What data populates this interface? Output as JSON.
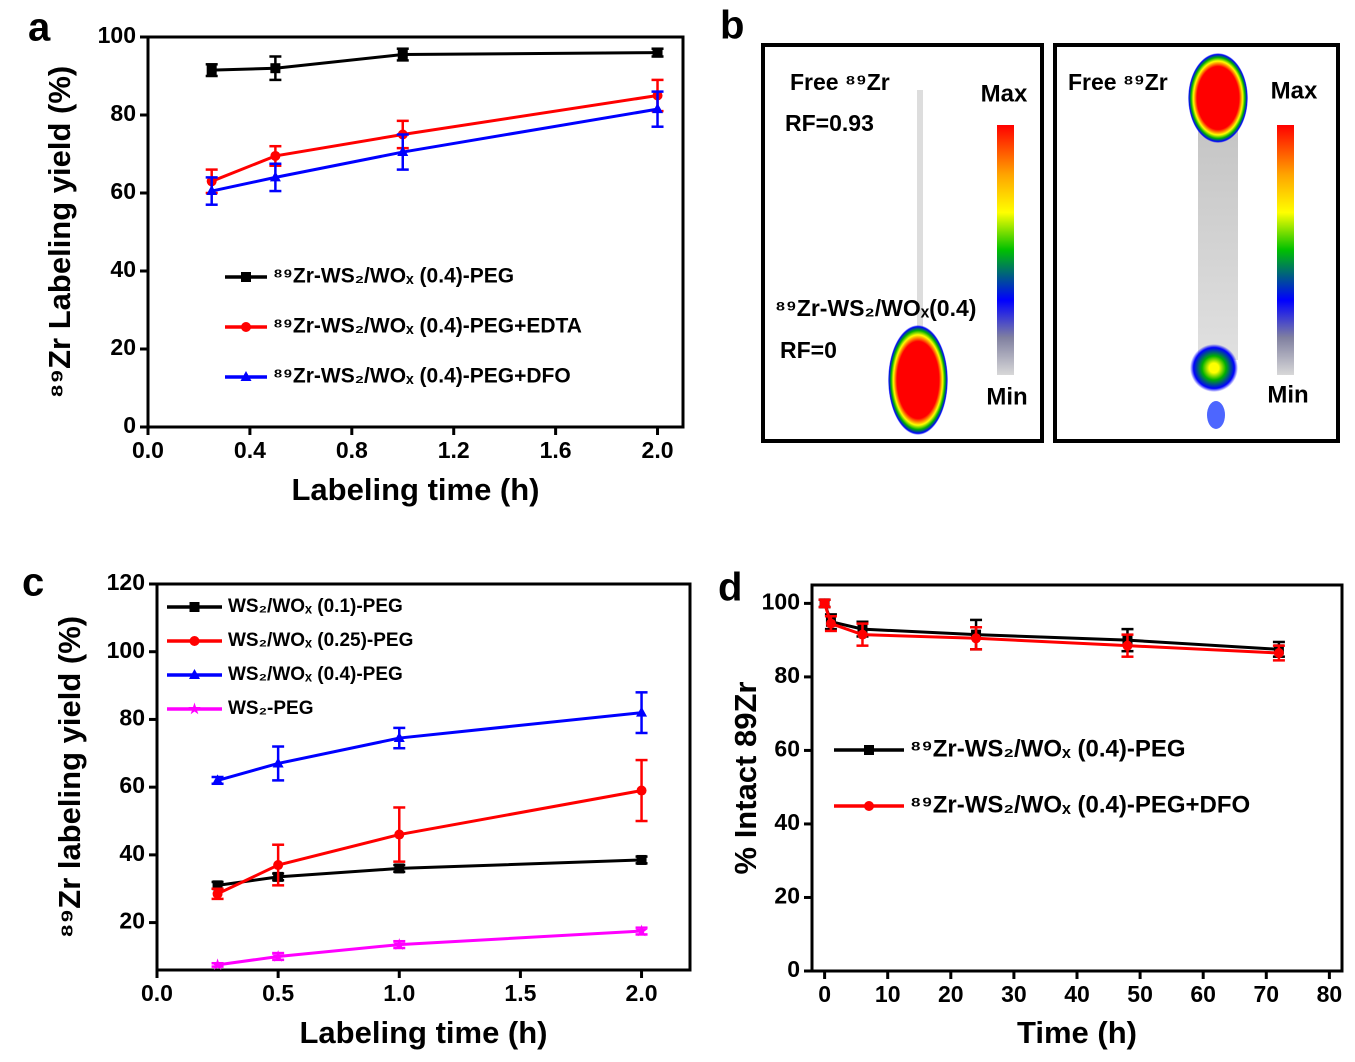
{
  "chart_data": [
    {
      "type": "line",
      "panel_label": "a",
      "xlabel": "Labeling time (h)",
      "ylabel": "⁸⁹Zr Labeling yield (%)",
      "x": [
        0.25,
        0.5,
        1,
        2
      ],
      "series": [
        {
          "name": "⁸⁹Zr-WS₂/WOₓ (0.4)-PEG",
          "color": "#000000",
          "marker": "square",
          "values": [
            91.5,
            92,
            95.5,
            96
          ],
          "errors": [
            1.5,
            3,
            1.5,
            1
          ]
        },
        {
          "name": "⁸⁹Zr-WS₂/WOₓ (0.4)-PEG+EDTA",
          "color": "#ff0000",
          "marker": "circle",
          "values": [
            63,
            69.5,
            75,
            85
          ],
          "errors": [
            3,
            2.5,
            3.5,
            4
          ]
        },
        {
          "name": "⁸⁹Zr-WS₂/WOₓ (0.4)-PEG+DFO",
          "color": "#0000ff",
          "marker": "triangle",
          "values": [
            60.5,
            64,
            70.5,
            81.5
          ],
          "errors": [
            3.5,
            3.5,
            4.5,
            4.5
          ]
        }
      ],
      "xlim": [
        0,
        2.1
      ],
      "xticks": [
        {
          "value": 0,
          "label": "0.0"
        },
        0.4,
        0.8,
        1.2,
        1.6,
        {
          "value": 2,
          "label": "2.0"
        }
      ],
      "ylim": [
        0,
        100
      ],
      "yticks": [
        0,
        20,
        40,
        60,
        80,
        100
      ],
      "legend": "lower left"
    },
    {
      "type": "line",
      "panel_label": "c",
      "xlabel": "Labeling time (h)",
      "ylabel": "⁸⁹Zr labeling yield (%)",
      "x": [
        0.25,
        0.5,
        1,
        2
      ],
      "series": [
        {
          "name": "WS₂/WOₓ (0.1)-PEG",
          "color": "#000000",
          "marker": "square",
          "values": [
            31,
            33.5,
            36,
            38.5
          ],
          "errors": [
            1,
            1,
            1,
            1
          ]
        },
        {
          "name": "WS₂/WOₓ (0.25)-PEG",
          "color": "#ff0000",
          "marker": "circle",
          "values": [
            28.5,
            37,
            46,
            59
          ],
          "errors": [
            1.5,
            6,
            8,
            9
          ]
        },
        {
          "name": "WS₂/WOₓ (0.4)-PEG",
          "color": "#0000ff",
          "marker": "triangle",
          "values": [
            62,
            67,
            74.5,
            82
          ],
          "errors": [
            1,
            5,
            3,
            6
          ]
        },
        {
          "name": "WS₂-PEG",
          "color": "#ff00ff",
          "marker": "star",
          "values": [
            7.5,
            10,
            13.5,
            17.5
          ],
          "errors": [
            0.5,
            1,
            1,
            1
          ]
        }
      ],
      "xlim": [
        0,
        2.2
      ],
      "xticks": [
        {
          "value": 0,
          "label": "0.0"
        },
        0.5,
        {
          "value": 1,
          "label": "1.0"
        },
        1.5,
        {
          "value": 2,
          "label": "2.0"
        }
      ],
      "ylim": [
        6,
        120
      ],
      "yticks": [
        20,
        40,
        60,
        80,
        100,
        120
      ],
      "legend": "upper left"
    },
    {
      "type": "line",
      "panel_label": "d",
      "xlabel": "Time (h)",
      "ylabel": "% Intact 89Zr",
      "x": [
        0,
        1,
        6,
        24,
        48,
        72
      ],
      "series": [
        {
          "name": "⁸⁹Zr-WS₂/WOₓ (0.4)-PEG",
          "color": "#000000",
          "marker": "square",
          "values": [
            100,
            95,
            93,
            91.5,
            90,
            87.5
          ],
          "errors": [
            1,
            2,
            2,
            4,
            3,
            2
          ]
        },
        {
          "name": "⁸⁹Zr-WS₂/WOₓ (0.4)-PEG+DFO",
          "color": "#ff0000",
          "marker": "circle",
          "values": [
            100,
            94.5,
            91.5,
            90.5,
            88.5,
            86.5
          ],
          "errors": [
            1,
            2,
            3,
            3,
            3,
            2
          ]
        }
      ],
      "xlim": [
        -2,
        82
      ],
      "xticks": [
        0,
        10,
        20,
        30,
        40,
        50,
        60,
        70,
        80
      ],
      "ylim": [
        0,
        105
      ],
      "yticks": [
        0,
        20,
        40,
        60,
        80,
        100
      ],
      "legend": "center left"
    }
  ],
  "panel_b": {
    "panel_label": "b",
    "left": {
      "free_label": "Free ⁸⁹Zr",
      "rf_free": "RF=0.93",
      "bound_label": "⁸⁹Zr-WS₂/WOₓ(0.4)",
      "rf_bound": "RF=0",
      "max": "Max",
      "min": "Min"
    },
    "right": {
      "free_label": "Free ⁸⁹Zr",
      "max": "Max",
      "min": "Min"
    }
  }
}
